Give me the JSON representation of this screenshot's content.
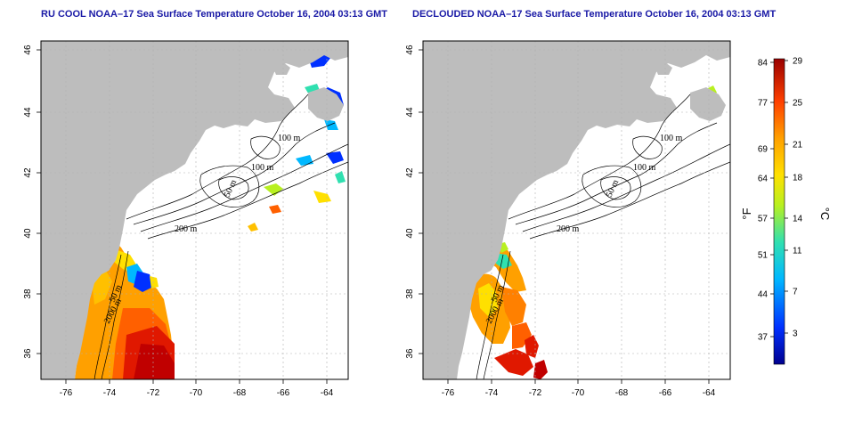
{
  "titles": {
    "left": "RU COOL NOAA–17 Sea Surface Temperature October 16, 2004 03:13 GMT",
    "right": "DECLOUDED NOAA–17 Sea Surface Temperature October 16, 2004 03:13 GMT"
  },
  "axes": {
    "lon_ticks": [
      "-76",
      "-74",
      "-72",
      "-70",
      "-68",
      "-66",
      "-64"
    ],
    "lat_ticks": [
      "36",
      "38",
      "40",
      "42",
      "44",
      "46"
    ]
  },
  "contour_labels": {
    "m100_a": "100 m",
    "m100_b": "100 m",
    "m50": "50 m",
    "m200": "200 m",
    "m50_south": "50 m",
    "m2000": "2000 m"
  },
  "colorbar": {
    "fahrenheit_ticks": [
      "84",
      "77",
      "69",
      "64",
      "57",
      "51",
      "44",
      "37"
    ],
    "celsius_ticks": [
      "29",
      "25",
      "21",
      "18",
      "14",
      "11",
      "7",
      "3"
    ],
    "fahrenheit_unit": "°F",
    "celsius_unit": "°C"
  },
  "colors": {
    "land": "#bdbdbd",
    "ocean": "#ffffff",
    "title": "#1a1aa6",
    "grid": "#b0b0b0"
  }
}
